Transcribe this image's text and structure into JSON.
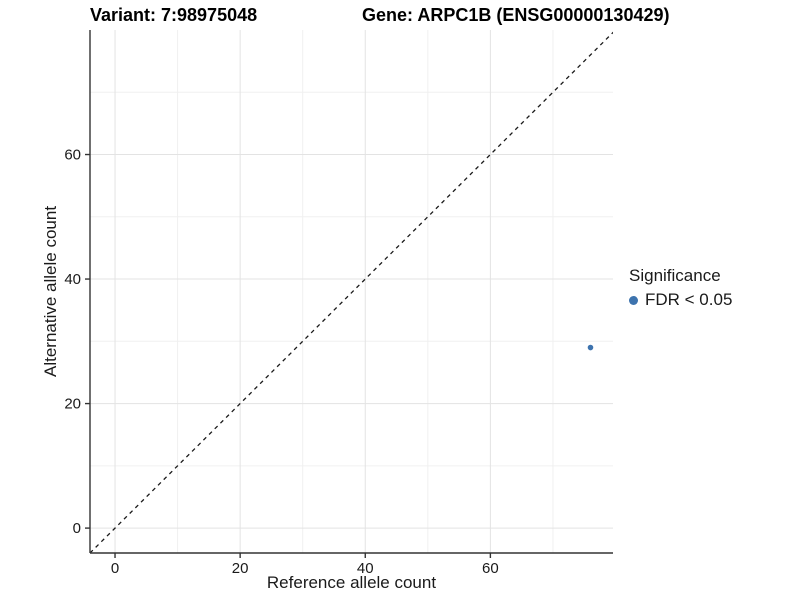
{
  "header": {
    "variant_title": "Variant: 7:98975048",
    "gene_title": "Gene: ARPC1B (ENSG00000130429)"
  },
  "chart_data": {
    "type": "scatter",
    "xlabel": "Reference allele count",
    "ylabel": "Alternative allele count",
    "xlim": [
      -4,
      79.6
    ],
    "ylim": [
      -4,
      80
    ],
    "xticks": [
      0,
      20,
      40,
      60
    ],
    "yticks": [
      0,
      20,
      40,
      60
    ],
    "minor_xticks": [
      10,
      30,
      50,
      70
    ],
    "minor_yticks": [
      10,
      30,
      50,
      70
    ],
    "grid": "major+minor",
    "identity_line": {
      "slope": 1,
      "intercept": 0,
      "style": "dashed"
    },
    "series": [
      {
        "name": "FDR < 0.05",
        "color": "#3d73ae",
        "points": [
          {
            "x": 76,
            "y": 29
          }
        ]
      }
    ],
    "legend": {
      "title": "Significance",
      "position": "right",
      "entries": [
        {
          "label": "FDR < 0.05",
          "color": "#3d73ae"
        }
      ]
    },
    "style": {
      "major_grid_color": "#e3e3e3",
      "minor_grid_color": "#f0f0f0",
      "axis_line_color": "#333333",
      "tick_label_color": "#1a1a1a",
      "point_radius": 2.8,
      "background": "#ffffff"
    }
  }
}
